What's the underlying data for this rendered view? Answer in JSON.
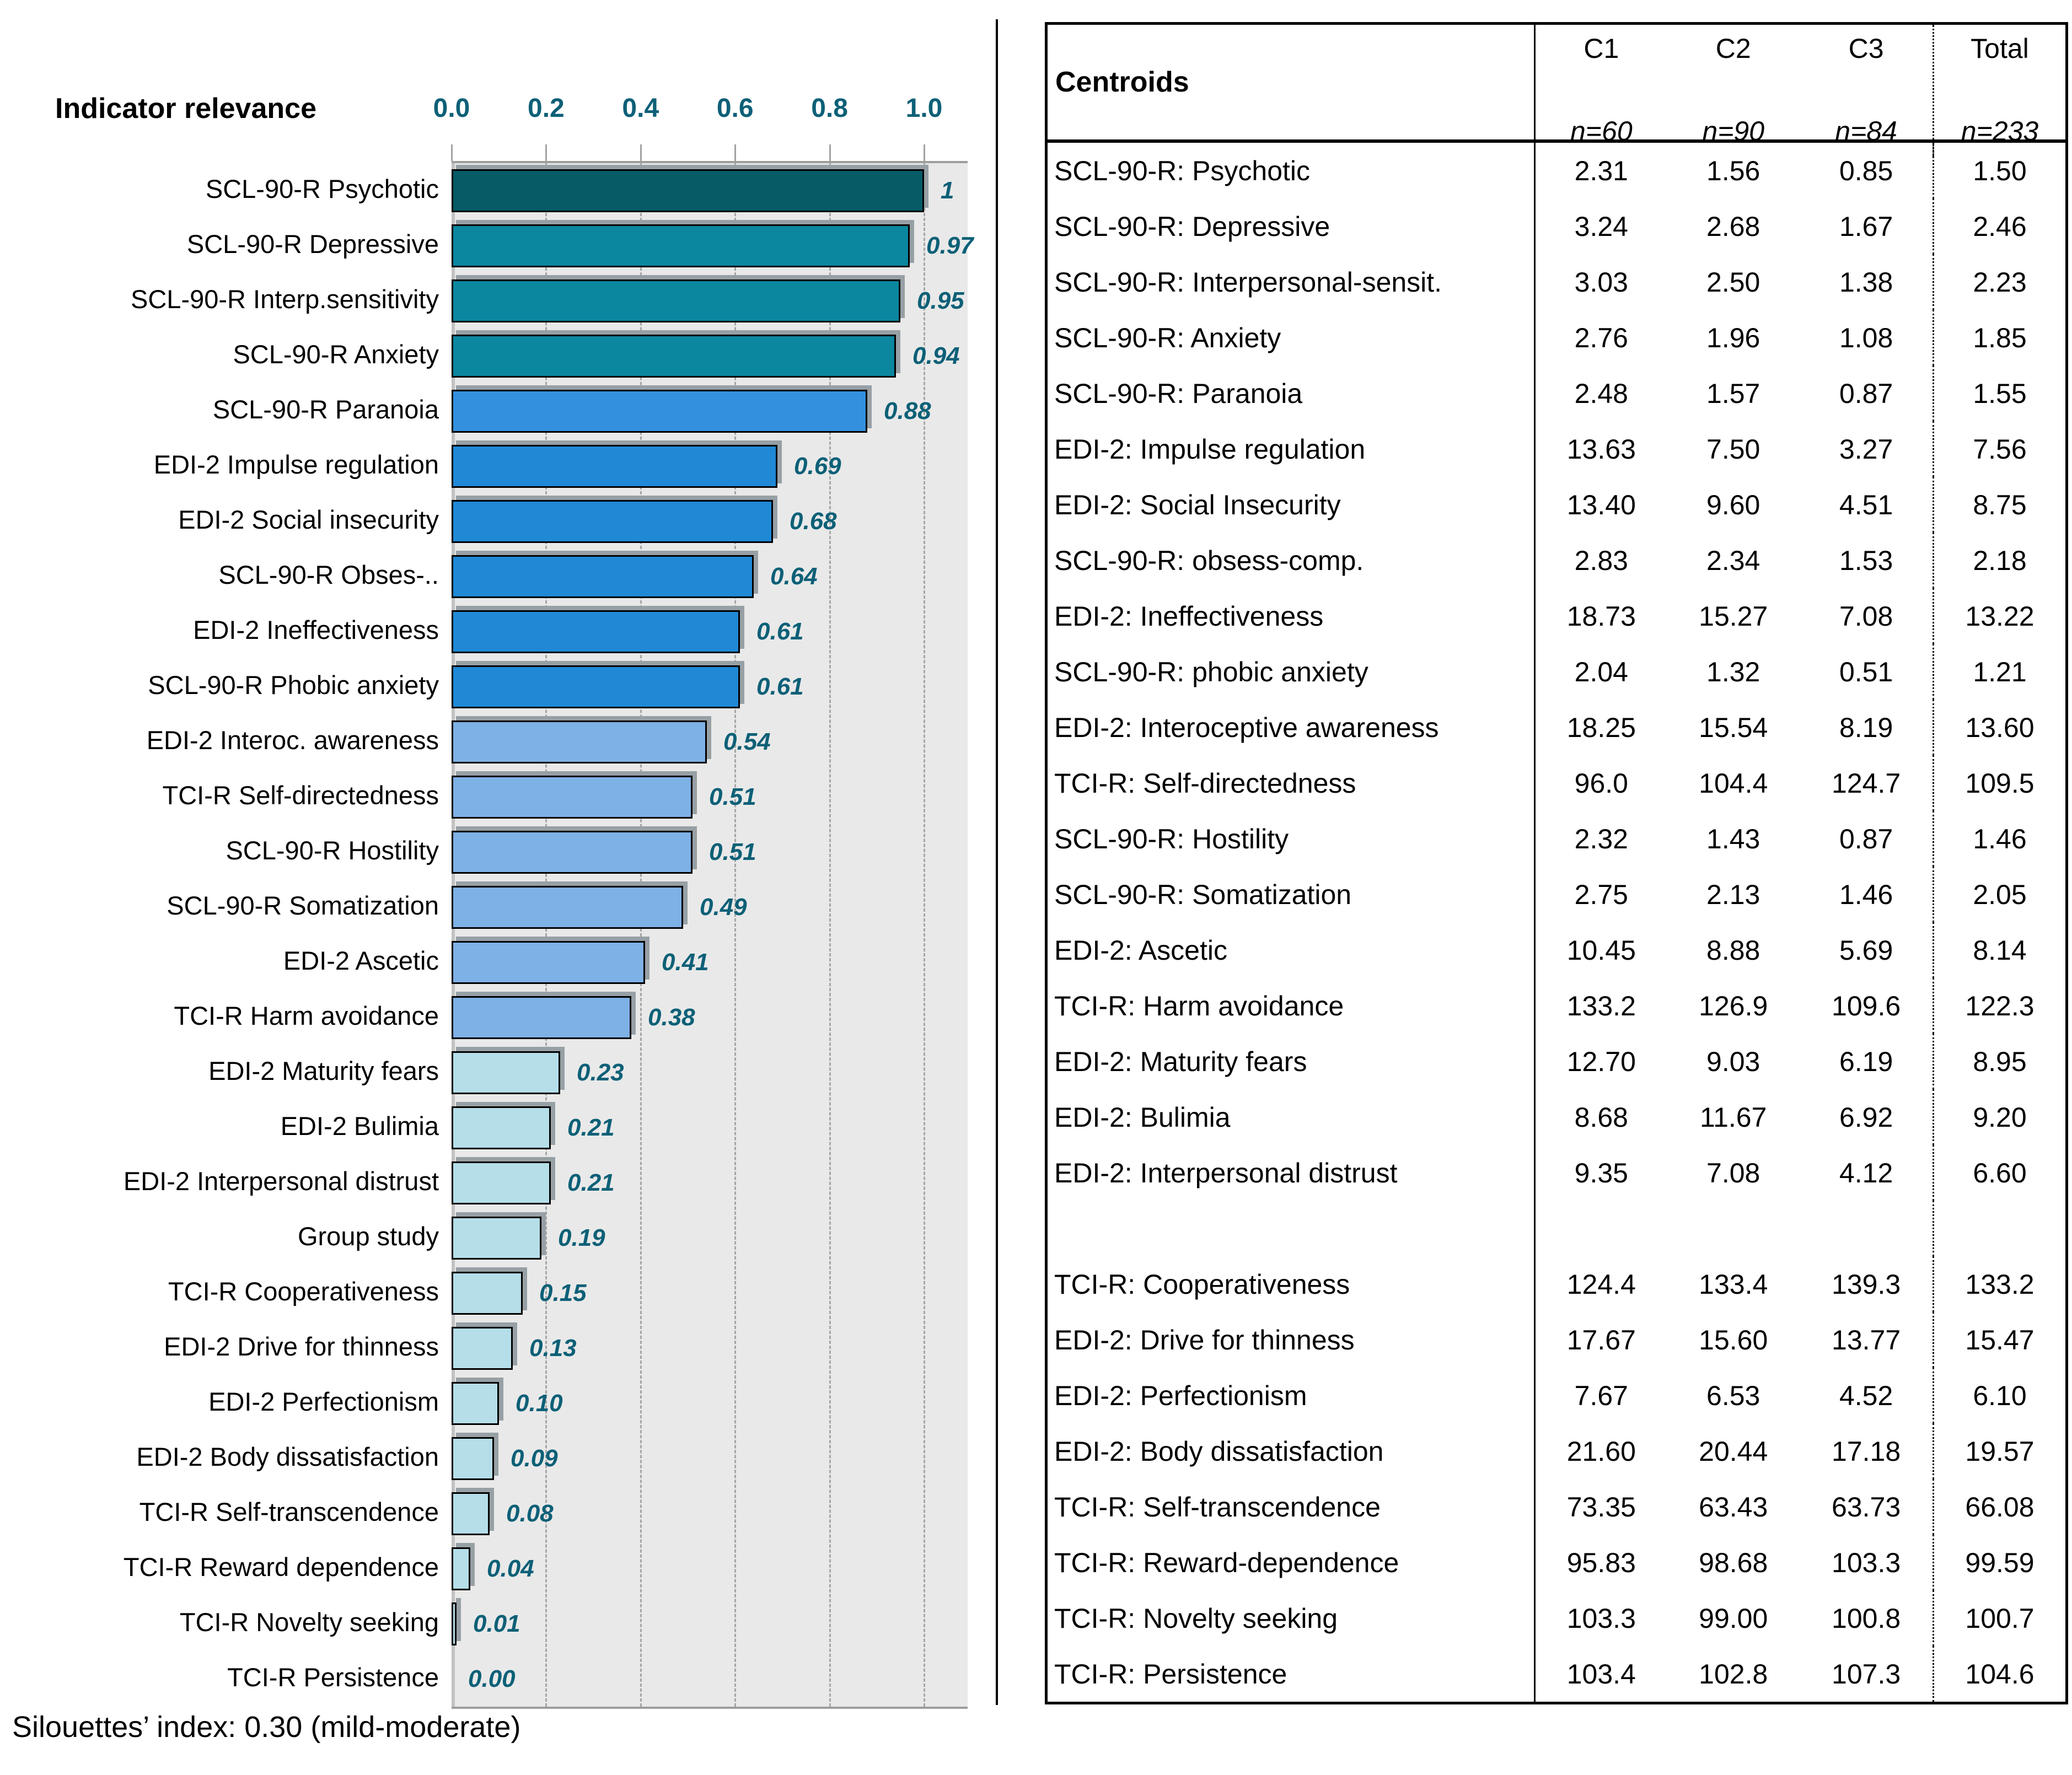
{
  "chart_data": {
    "type": "bar",
    "orientation": "horizontal-bars",
    "title": "Indicator relevance",
    "xlabel": "",
    "ylabel": "",
    "xlim": [
      0,
      1.05
    ],
    "grid": "dashed-vertical",
    "legend_position": "none",
    "x_ticks": [
      "0.0",
      "0.2",
      "0.4",
      "0.6",
      "0.8",
      "1.0"
    ],
    "x_tick_values": [
      0,
      0.2,
      0.4,
      0.6,
      0.8,
      1.0
    ],
    "categories": [
      "SCL-90-R Psychotic",
      "SCL-90-R Depressive",
      "SCL-90-R Interp.sensitivity",
      "SCL-90-R Anxiety",
      "SCL-90-R Paranoia",
      "EDI-2 Impulse regulation",
      "EDI-2 Social insecurity",
      "SCL-90-R Obses-..",
      "EDI-2 Ineffectiveness",
      "SCL-90-R Phobic anxiety",
      "EDI-2 Interoc. awareness",
      "TCI-R Self-directedness",
      "SCL-90-R Hostility",
      "SCL-90-R Somatization",
      "EDI-2 Ascetic",
      "TCI-R Harm avoidance",
      "EDI-2 Maturity fears",
      "EDI-2 Bulimia",
      "EDI-2 Interpersonal distrust",
      "Group study",
      "TCI-R Cooperativeness",
      "EDI-2 Drive for thinness",
      "EDI-2 Perfectionism",
      "EDI-2 Body dissatisfaction",
      "TCI-R Self-transcendence",
      "TCI-R Reward dependence",
      "TCI-R Novelty seeking",
      "TCI-R Persistence"
    ],
    "values": [
      1,
      0.97,
      0.95,
      0.94,
      0.88,
      0.69,
      0.68,
      0.64,
      0.61,
      0.61,
      0.54,
      0.51,
      0.51,
      0.49,
      0.41,
      0.38,
      0.23,
      0.21,
      0.21,
      0.19,
      0.15,
      0.13,
      0.1,
      0.09,
      0.08,
      0.04,
      0.01,
      0.0
    ],
    "value_labels": [
      "1",
      "0.97",
      "0.95",
      "0.94",
      "0.88",
      "0.69",
      "0.68",
      "0.64",
      "0.61",
      "0.61",
      "0.54",
      "0.51",
      "0.51",
      "0.49",
      "0.41",
      "0.38",
      "0.23",
      "0.21",
      "0.21",
      "0.19",
      "0.15",
      "0.13",
      "0.10",
      "0.09",
      "0.08",
      "0.04",
      "0.01",
      "0.00"
    ],
    "bar_colors": [
      "#065b67",
      "#0b87a0",
      "#0b87a0",
      "#0b87a0",
      "#3390df",
      "#1f89d6",
      "#1f89d6",
      "#1f89d6",
      "#1f89d6",
      "#1f89d6",
      "#7eb1e6",
      "#7eb1e6",
      "#7eb1e6",
      "#7eb1e6",
      "#7eb1e6",
      "#7eb1e6",
      "#b5dee9",
      "#b5dee9",
      "#b5dee9",
      "#b5dee9",
      "#b5dee9",
      "#b5dee9",
      "#b5dee9",
      "#b5dee9",
      "#b5dee9",
      "#b5dee9",
      "#b5dee9",
      "#b5dee9"
    ],
    "footer": "Silouettes’ index: 0.30 (mild-moderate)"
  },
  "table": {
    "corner_label": "Centroids",
    "columns": [
      "C1",
      "C2",
      "C3",
      "Total"
    ],
    "subcolumns": [
      "n=60",
      "n=90",
      "n=84",
      "n=233"
    ],
    "rows": [
      [
        "SCL-90-R: Psychotic",
        "2.31",
        "1.56",
        "0.85",
        "1.50"
      ],
      [
        "SCL-90-R: Depressive",
        "3.24",
        "2.68",
        "1.67",
        "2.46"
      ],
      [
        "SCL-90-R: Interpersonal-sensit.",
        "3.03",
        "2.50",
        "1.38",
        "2.23"
      ],
      [
        "SCL-90-R: Anxiety",
        "2.76",
        "1.96",
        "1.08",
        "1.85"
      ],
      [
        "SCL-90-R: Paranoia",
        "2.48",
        "1.57",
        "0.87",
        "1.55"
      ],
      [
        "EDI-2: Impulse regulation",
        "13.63",
        "7.50",
        "3.27",
        "7.56"
      ],
      [
        "EDI-2: Social Insecurity",
        "13.40",
        "9.60",
        "4.51",
        "8.75"
      ],
      [
        "SCL-90-R: obsess-comp.",
        "2.83",
        "2.34",
        "1.53",
        "2.18"
      ],
      [
        "EDI-2: Ineffectiveness",
        "18.73",
        "15.27",
        "7.08",
        "13.22"
      ],
      [
        "SCL-90-R: phobic anxiety",
        "2.04",
        "1.32",
        "0.51",
        "1.21"
      ],
      [
        "EDI-2: Interoceptive awareness",
        "18.25",
        "15.54",
        "8.19",
        "13.60"
      ],
      [
        "TCI-R: Self-directedness",
        "96.0",
        "104.4",
        "124.7",
        "109.5"
      ],
      [
        "SCL-90-R: Hostility",
        "2.32",
        "1.43",
        "0.87",
        "1.46"
      ],
      [
        "SCL-90-R: Somatization",
        "2.75",
        "2.13",
        "1.46",
        "2.05"
      ],
      [
        "EDI-2: Ascetic",
        "10.45",
        "8.88",
        "5.69",
        "8.14"
      ],
      [
        "TCI-R: Harm avoidance",
        "133.2",
        "126.9",
        "109.6",
        "122.3"
      ],
      [
        "EDI-2: Maturity fears",
        "12.70",
        "9.03",
        "6.19",
        "8.95"
      ],
      [
        "EDI-2: Bulimia",
        "8.68",
        "11.67",
        "6.92",
        "9.20"
      ],
      [
        "EDI-2: Interpersonal distrust",
        "9.35",
        "7.08",
        "4.12",
        "6.60"
      ],
      [
        "",
        "",
        "",
        "",
        ""
      ],
      [
        "TCI-R: Cooperativeness",
        "124.4",
        "133.4",
        "139.3",
        "133.2"
      ],
      [
        "EDI-2: Drive for thinness",
        "17.67",
        "15.60",
        "13.77",
        "15.47"
      ],
      [
        "EDI-2: Perfectionism",
        "7.67",
        "6.53",
        "4.52",
        "6.10"
      ],
      [
        "EDI-2: Body dissatisfaction",
        "21.60",
        "20.44",
        "17.18",
        "19.57"
      ],
      [
        "TCI-R: Self-transcendence",
        "73.35",
        "63.43",
        "63.73",
        "66.08"
      ],
      [
        "TCI-R: Reward-dependence",
        "95.83",
        "98.68",
        "103.3",
        "99.59"
      ],
      [
        "TCI-R: Novelty seeking",
        "103.3",
        "99.00",
        "100.8",
        "100.7"
      ],
      [
        "TCI-R: Persistence",
        "103.4",
        "102.8",
        "107.3",
        "104.6"
      ]
    ]
  },
  "colors": {
    "plot_background": "#e9e9e9",
    "grid_line": "#a6a6a6",
    "axis_band": "#c2c2c2",
    "tick_text": "#0d6077",
    "value_text": "#0d6077",
    "bar_border": "#000000",
    "bar_shadow": "#97a0a5",
    "table_border": "#000000",
    "text": "#000000"
  }
}
